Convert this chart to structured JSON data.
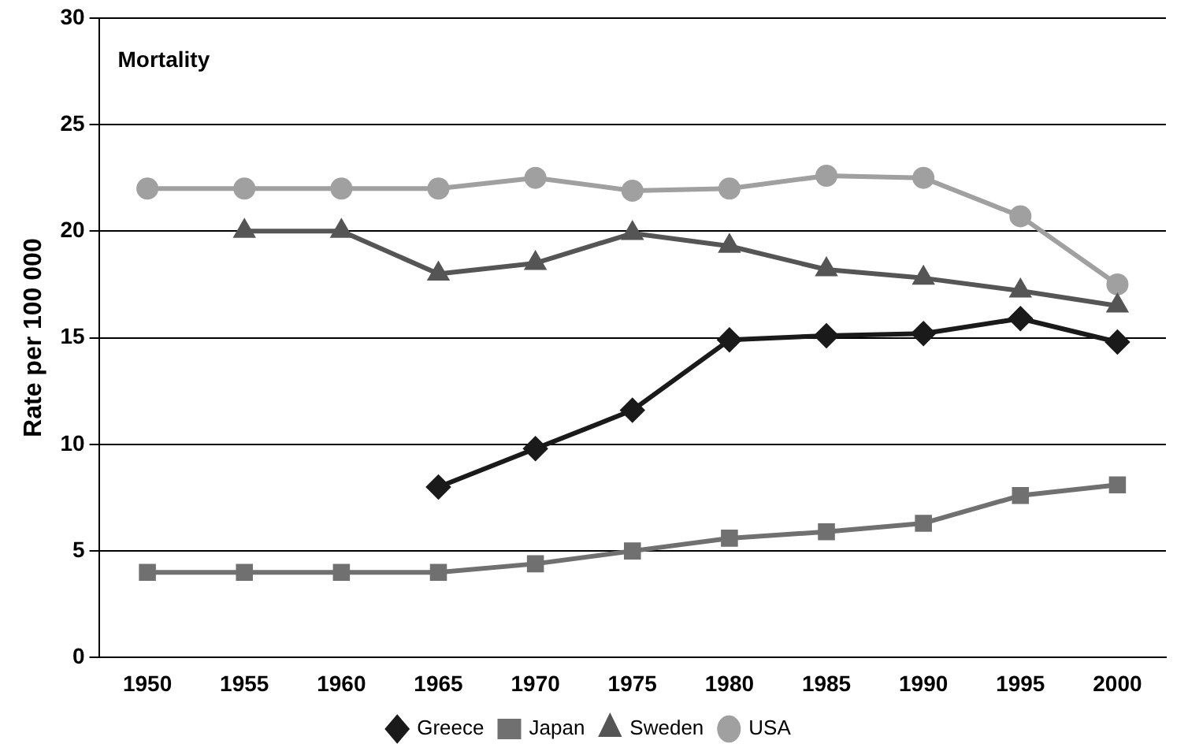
{
  "chart_data": {
    "type": "line",
    "title": "Mortality",
    "ylabel": "Rate per 100 000",
    "categories": [
      "1950",
      "1955",
      "1960",
      "1965",
      "1970",
      "1975",
      "1980",
      "1985",
      "1990",
      "1995",
      "2000"
    ],
    "series": [
      {
        "name": "Greece",
        "color": "#1a1a1a",
        "marker": "diamond",
        "values": [
          null,
          null,
          null,
          8.0,
          9.8,
          11.6,
          14.9,
          15.1,
          15.2,
          15.9,
          14.8
        ]
      },
      {
        "name": "Japan",
        "color": "#707070",
        "marker": "square",
        "values": [
          4.0,
          4.0,
          4.0,
          4.0,
          4.4,
          5.0,
          5.6,
          5.9,
          6.3,
          7.6,
          8.1
        ]
      },
      {
        "name": "Sweden",
        "color": "#555555",
        "marker": "triangle",
        "values": [
          null,
          20.0,
          20.0,
          18.0,
          18.5,
          19.9,
          19.3,
          18.2,
          17.8,
          17.2,
          16.5
        ]
      },
      {
        "name": "USA",
        "color": "#a0a0a0",
        "marker": "circle",
        "values": [
          22.0,
          22.0,
          22.0,
          22.0,
          22.5,
          21.9,
          22.0,
          22.6,
          22.5,
          20.7,
          17.5
        ]
      }
    ],
    "ylim": [
      0,
      30
    ],
    "yticks": [
      0,
      5,
      10,
      15,
      20,
      25,
      30
    ],
    "grid": "y",
    "legend": "bottom",
    "line_style": "solid"
  }
}
